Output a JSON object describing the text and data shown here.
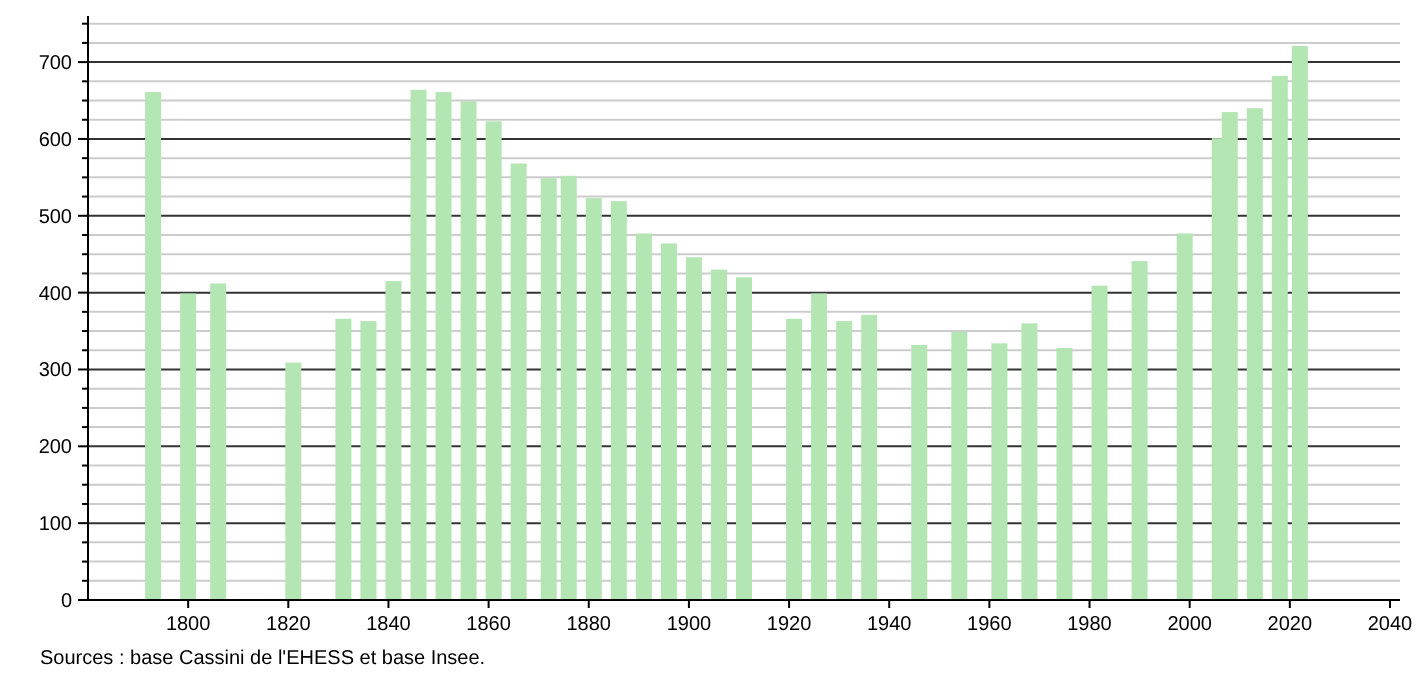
{
  "chart_data": {
    "type": "bar",
    "x": [
      1793,
      1800,
      1806,
      1821,
      1831,
      1836,
      1841,
      1846,
      1851,
      1856,
      1861,
      1866,
      1872,
      1876,
      1881,
      1886,
      1891,
      1896,
      1901,
      1906,
      1911,
      1921,
      1926,
      1931,
      1936,
      1946,
      1954,
      1962,
      1968,
      1975,
      1982,
      1990,
      1999,
      2006,
      2008,
      2013,
      2018,
      2022
    ],
    "values": [
      661,
      399,
      412,
      309,
      366,
      363,
      415,
      664,
      661,
      649,
      623,
      568,
      549,
      552,
      523,
      519,
      477,
      464,
      446,
      430,
      420,
      366,
      399,
      363,
      371,
      332,
      349,
      334,
      360,
      328,
      409,
      441,
      477,
      601,
      635,
      640,
      682,
      721
    ],
    "color": "#b3e6b3",
    "xlim": [
      1780,
      2042
    ],
    "xticks": [
      1800,
      1820,
      1840,
      1860,
      1880,
      1900,
      1920,
      1940,
      1960,
      1980,
      2000,
      2020,
      2040
    ],
    "ylim": [
      0,
      760
    ],
    "yticks": [
      0,
      {
        "value": 25,
        "label": null
      },
      {
        "value": 50,
        "label": null
      },
      {
        "value": 75,
        "label": null
      },
      100,
      {
        "value": 125,
        "label": null
      },
      {
        "value": 150,
        "label": null
      },
      {
        "value": 175,
        "label": null
      },
      200,
      {
        "value": 225,
        "label": null
      },
      {
        "value": 250,
        "label": null
      },
      {
        "value": 275,
        "label": null
      },
      300,
      {
        "value": 325,
        "label": null
      },
      {
        "value": 350,
        "label": null
      },
      {
        "value": 375,
        "label": null
      },
      400,
      {
        "value": 425,
        "label": null
      },
      {
        "value": 450,
        "label": null
      },
      {
        "value": 475,
        "label": null
      },
      500,
      {
        "value": 525,
        "label": null
      },
      {
        "value": 550,
        "label": null
      },
      {
        "value": 575,
        "label": null
      },
      600,
      {
        "value": 625,
        "label": null
      },
      {
        "value": 650,
        "label": null
      },
      {
        "value": 675,
        "label": null
      },
      700,
      {
        "value": 725,
        "label": null
      },
      {
        "value": 750,
        "label": null
      }
    ],
    "grid": true,
    "annotations": [
      "Sources : base Cassini de l'EHESS et base Insee."
    ]
  }
}
